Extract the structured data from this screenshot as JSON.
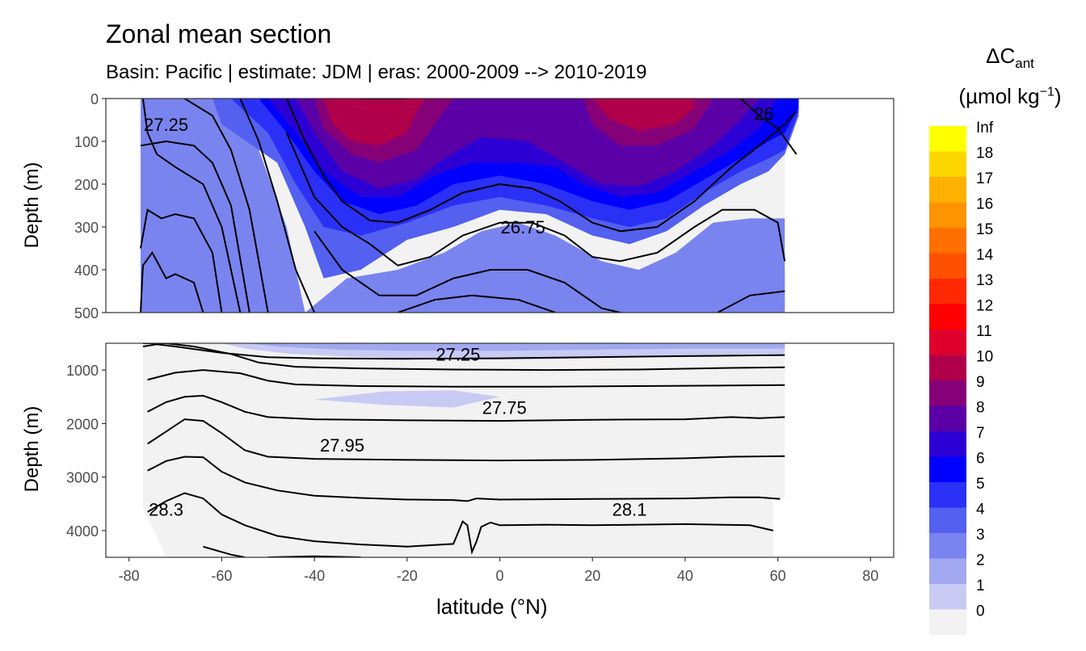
{
  "chart_data": {
    "type": "heatmap",
    "title": "Zonal mean section",
    "subtitle": "Basin: Pacific | estimate: JDM  | eras: 2000-2009 --> 2010-2019",
    "xlabel": "latitude (°N)",
    "ylabel": "Depth (m)",
    "xlim": [
      -85,
      85
    ],
    "x_ticks": [
      "-80",
      "-60",
      "-40",
      "-20",
      "0",
      "20",
      "40",
      "60",
      "80"
    ],
    "x_tick_values": [
      -80,
      -60,
      -40,
      -20,
      0,
      20,
      40,
      60,
      80
    ],
    "panels": [
      {
        "name": "upper",
        "ylim": [
          0,
          500
        ],
        "y_ticks": [
          "0",
          "100",
          "200",
          "300",
          "400",
          "500"
        ],
        "y_tick_values": [
          0,
          100,
          200,
          300,
          400,
          500
        ],
        "isopycnal_labels": [
          "27.25",
          "26.75",
          "26"
        ],
        "isopycnal_label_positions": [
          [
            -72,
            60
          ],
          [
            5,
            300
          ],
          [
            57,
            35
          ]
        ]
      },
      {
        "name": "lower",
        "ylim": [
          500,
          4500
        ],
        "y_ticks": [
          "1000",
          "2000",
          "3000",
          "4000"
        ],
        "y_tick_values": [
          1000,
          2000,
          3000,
          4000
        ],
        "isopycnal_labels": [
          "27.25",
          "27.75",
          "27.95",
          "28.3",
          "28.1"
        ],
        "isopycnal_label_positions": [
          [
            -9,
            700
          ],
          [
            1,
            1700
          ],
          [
            -34,
            2400
          ],
          [
            -72,
            3600
          ],
          [
            28,
            3600
          ]
        ]
      }
    ],
    "legend": {
      "title": "ΔC",
      "title_subscript": "ant",
      "unit_prefix": "(µmol kg",
      "unit_exponent": "−1",
      "unit_suffix": ")",
      "position": "right",
      "labels": [
        "Inf",
        "18",
        "17",
        "16",
        "15",
        "14",
        "13",
        "12",
        "11",
        "10",
        "9",
        "8",
        "7",
        "6",
        "5",
        "4",
        "3",
        "2",
        "1",
        "0"
      ],
      "colors": [
        "#ffff00",
        "#ffd700",
        "#ffb000",
        "#ff9300",
        "#ff7000",
        "#ff5000",
        "#ff2800",
        "#ff0000",
        "#e0002c",
        "#b0004a",
        "#860078",
        "#5a00a6",
        "#2c00d4",
        "#0000ff",
        "#2a30f6",
        "#5460ef",
        "#7a84ef",
        "#a2a8f0",
        "#c8caf3",
        "#f2f2f2"
      ]
    }
  }
}
